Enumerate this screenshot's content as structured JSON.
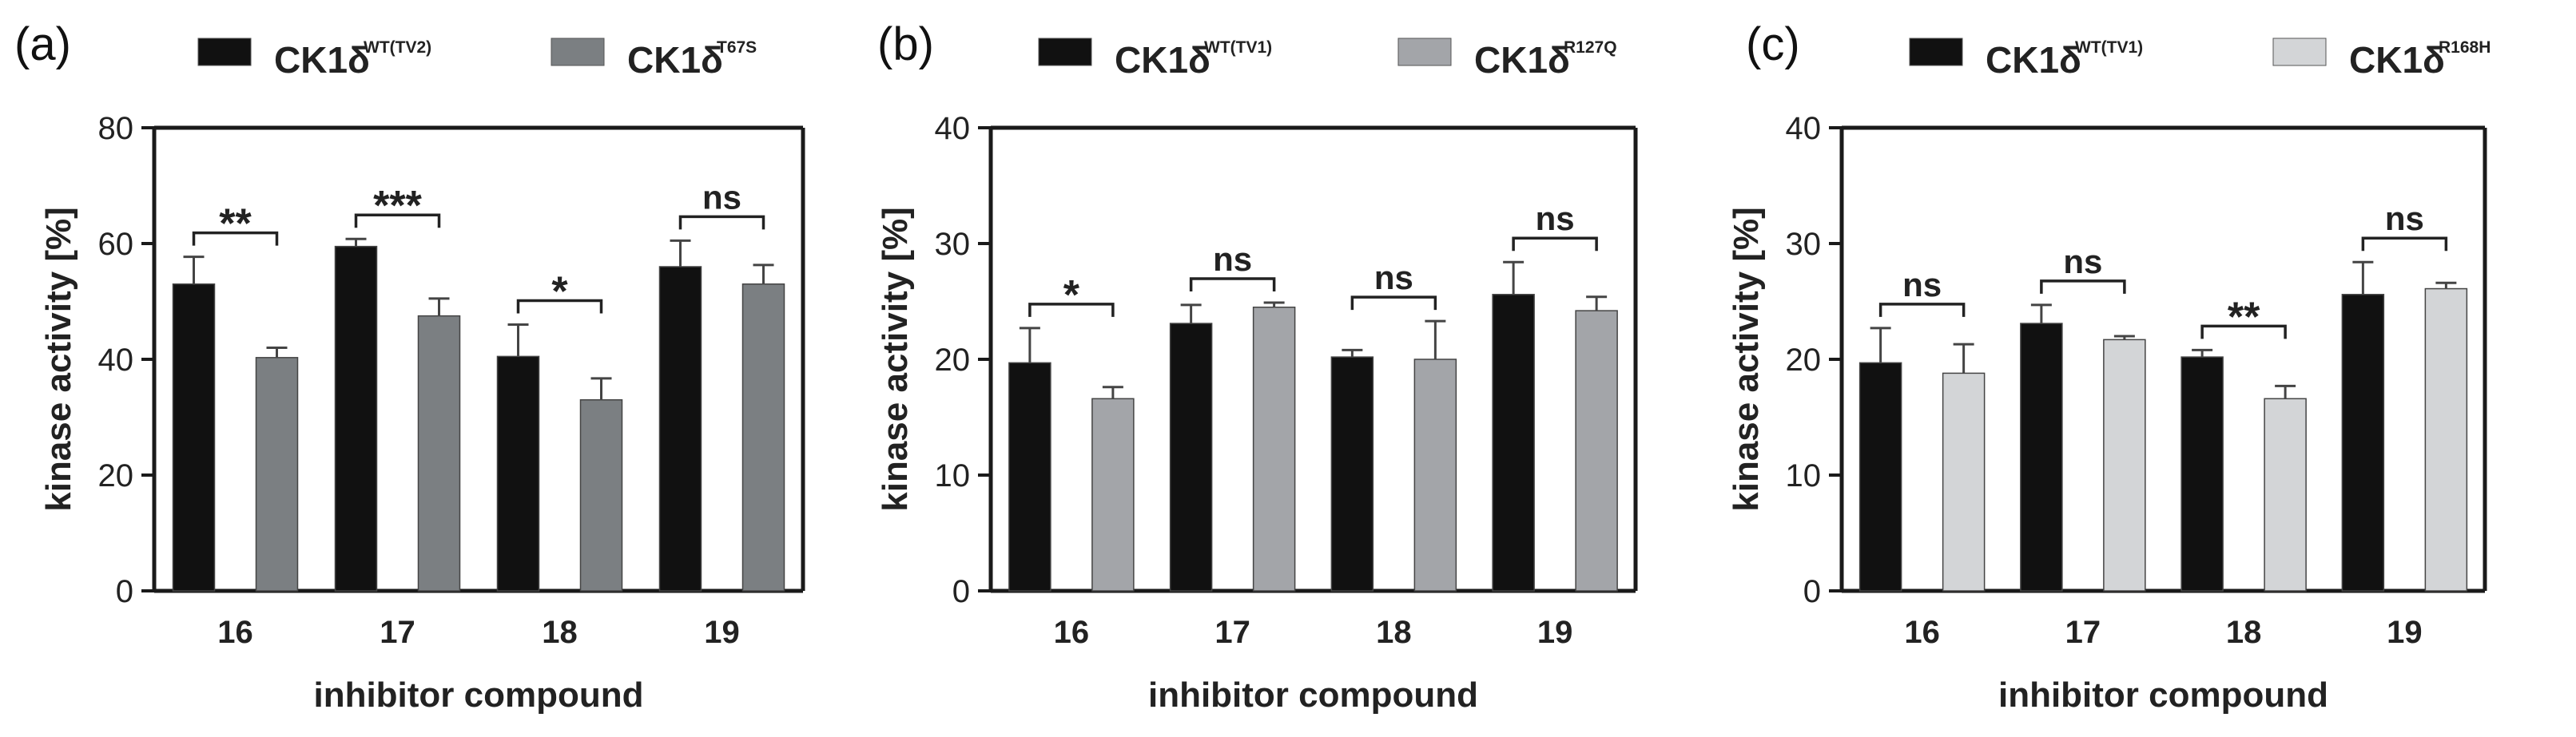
{
  "colors": {
    "wt": "#111111",
    "mutant_a": "#7b7f82",
    "mutant_b": "#a3a5a9",
    "mutant_c": "#d3d5d7",
    "axis": "#1a1a1a"
  },
  "chart_data": [
    {
      "type": "bar",
      "panel_label": "(a)",
      "legend": [
        {
          "base": "CK1δ",
          "sup": "WT(TV2)"
        },
        {
          "base": "CK1δ",
          "sup": "T67S"
        }
      ],
      "categories": [
        "16",
        "17",
        "18",
        "19"
      ],
      "series": [
        {
          "name": "CK1δ WT(TV2)",
          "values": [
            53,
            59.5,
            40.5,
            56
          ],
          "errors": [
            4.7,
            1.3,
            5.5,
            4.5
          ]
        },
        {
          "name": "CK1δ T67S",
          "values": [
            40.3,
            47.5,
            33,
            53
          ],
          "errors": [
            1.7,
            3,
            3.7,
            3.3
          ]
        }
      ],
      "significance": [
        "**",
        "***",
        "*",
        "ns"
      ],
      "xlabel": "inhibitor compound",
      "ylabel": "kinase activity [%]",
      "ylim": [
        0,
        80
      ],
      "yticks": [
        "0",
        "20",
        "40",
        "60",
        "80"
      ]
    },
    {
      "type": "bar",
      "panel_label": "(b)",
      "legend": [
        {
          "base": "CK1δ",
          "sup": "WT(TV1)"
        },
        {
          "base": "CK1δ",
          "sup": "R127Q"
        }
      ],
      "categories": [
        "16",
        "17",
        "18",
        "19"
      ],
      "series": [
        {
          "name": "CK1δ WT(TV1)",
          "values": [
            19.7,
            23.1,
            20.2,
            25.6
          ],
          "errors": [
            3,
            1.6,
            0.6,
            2.8
          ]
        },
        {
          "name": "CK1δ R127Q",
          "values": [
            16.6,
            24.5,
            20,
            24.2
          ],
          "errors": [
            1,
            0.4,
            3.3,
            1.2
          ]
        }
      ],
      "significance": [
        "*",
        "ns",
        "ns",
        "ns"
      ],
      "xlabel": "inhibitor compound",
      "ylabel": "kinase activity [%]",
      "ylim": [
        0,
        40
      ],
      "yticks": [
        "0",
        "10",
        "20",
        "30",
        "40"
      ]
    },
    {
      "type": "bar",
      "panel_label": "(c)",
      "legend": [
        {
          "base": "CK1δ",
          "sup": "WT(TV1)"
        },
        {
          "base": "CK1δ",
          "sup": "R168H"
        }
      ],
      "categories": [
        "16",
        "17",
        "18",
        "19"
      ],
      "series": [
        {
          "name": "CK1δ WT(TV1)",
          "values": [
            19.7,
            23.1,
            20.2,
            25.6
          ],
          "errors": [
            3,
            1.6,
            0.6,
            2.8
          ]
        },
        {
          "name": "CK1δ R168H",
          "values": [
            18.8,
            21.7,
            16.6,
            26.1
          ],
          "errors": [
            2.5,
            0.3,
            1.1,
            0.5
          ]
        }
      ],
      "significance": [
        "ns",
        "ns",
        "**",
        "ns"
      ],
      "xlabel": "inhibitor compound",
      "ylabel": "kinase activity [%]",
      "ylim": [
        0,
        40
      ],
      "yticks": [
        "0",
        "10",
        "20",
        "30",
        "40"
      ]
    }
  ]
}
